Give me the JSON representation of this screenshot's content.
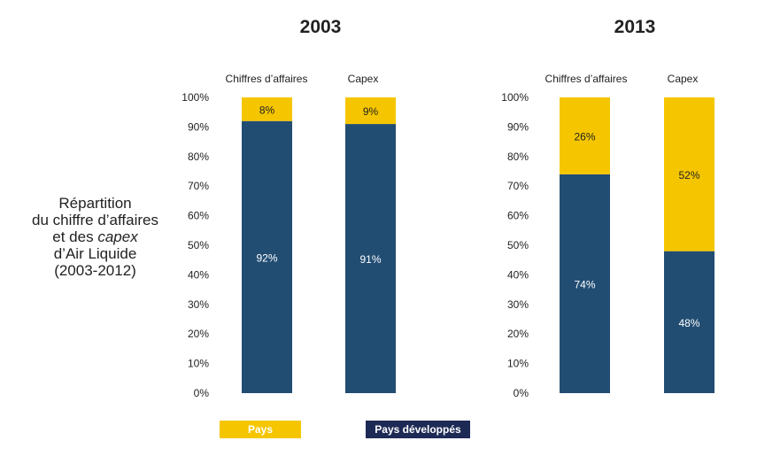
{
  "side_title": {
    "line1": "Répartition",
    "line2": "du chiffre d’affaires",
    "line3a": "et des ",
    "line3b": "capex",
    "line4": "d’Air Liquide",
    "line5": "(2003-2012)"
  },
  "legend": {
    "emerging": "Pays émergents",
    "developed": "Pays développés"
  },
  "colors": {
    "emerging": "#f5c600",
    "developed": "#224d73",
    "developed_legend": "#1d2a55"
  },
  "chart_data": [
    {
      "type": "bar",
      "stacked": true,
      "title": "2003",
      "categories": [
        "Chiffres d’affaires",
        "Capex"
      ],
      "series": [
        {
          "name": "Pays développés",
          "values": [
            92,
            91
          ],
          "labels": [
            "92%",
            "91%"
          ]
        },
        {
          "name": "Pays émergents",
          "values": [
            8,
            9
          ],
          "labels": [
            "8%",
            "9%"
          ]
        }
      ],
      "yticks": [
        "0%",
        "10%",
        "20%",
        "30%",
        "40%",
        "50%",
        "60%",
        "70%",
        "80%",
        "90%",
        "100%"
      ],
      "ylim": [
        0,
        100
      ]
    },
    {
      "type": "bar",
      "stacked": true,
      "title": "2013",
      "categories": [
        "Chiffres d’affaires",
        "Capex"
      ],
      "series": [
        {
          "name": "Pays développés",
          "values": [
            74,
            48
          ],
          "labels": [
            "74%",
            "48%"
          ]
        },
        {
          "name": "Pays émergents",
          "values": [
            26,
            52
          ],
          "labels": [
            "26%",
            "52%"
          ]
        }
      ],
      "yticks": [
        "0%",
        "10%",
        "20%",
        "30%",
        "40%",
        "50%",
        "60%",
        "70%",
        "80%",
        "90%",
        "100%"
      ],
      "ylim": [
        0,
        100
      ]
    }
  ]
}
